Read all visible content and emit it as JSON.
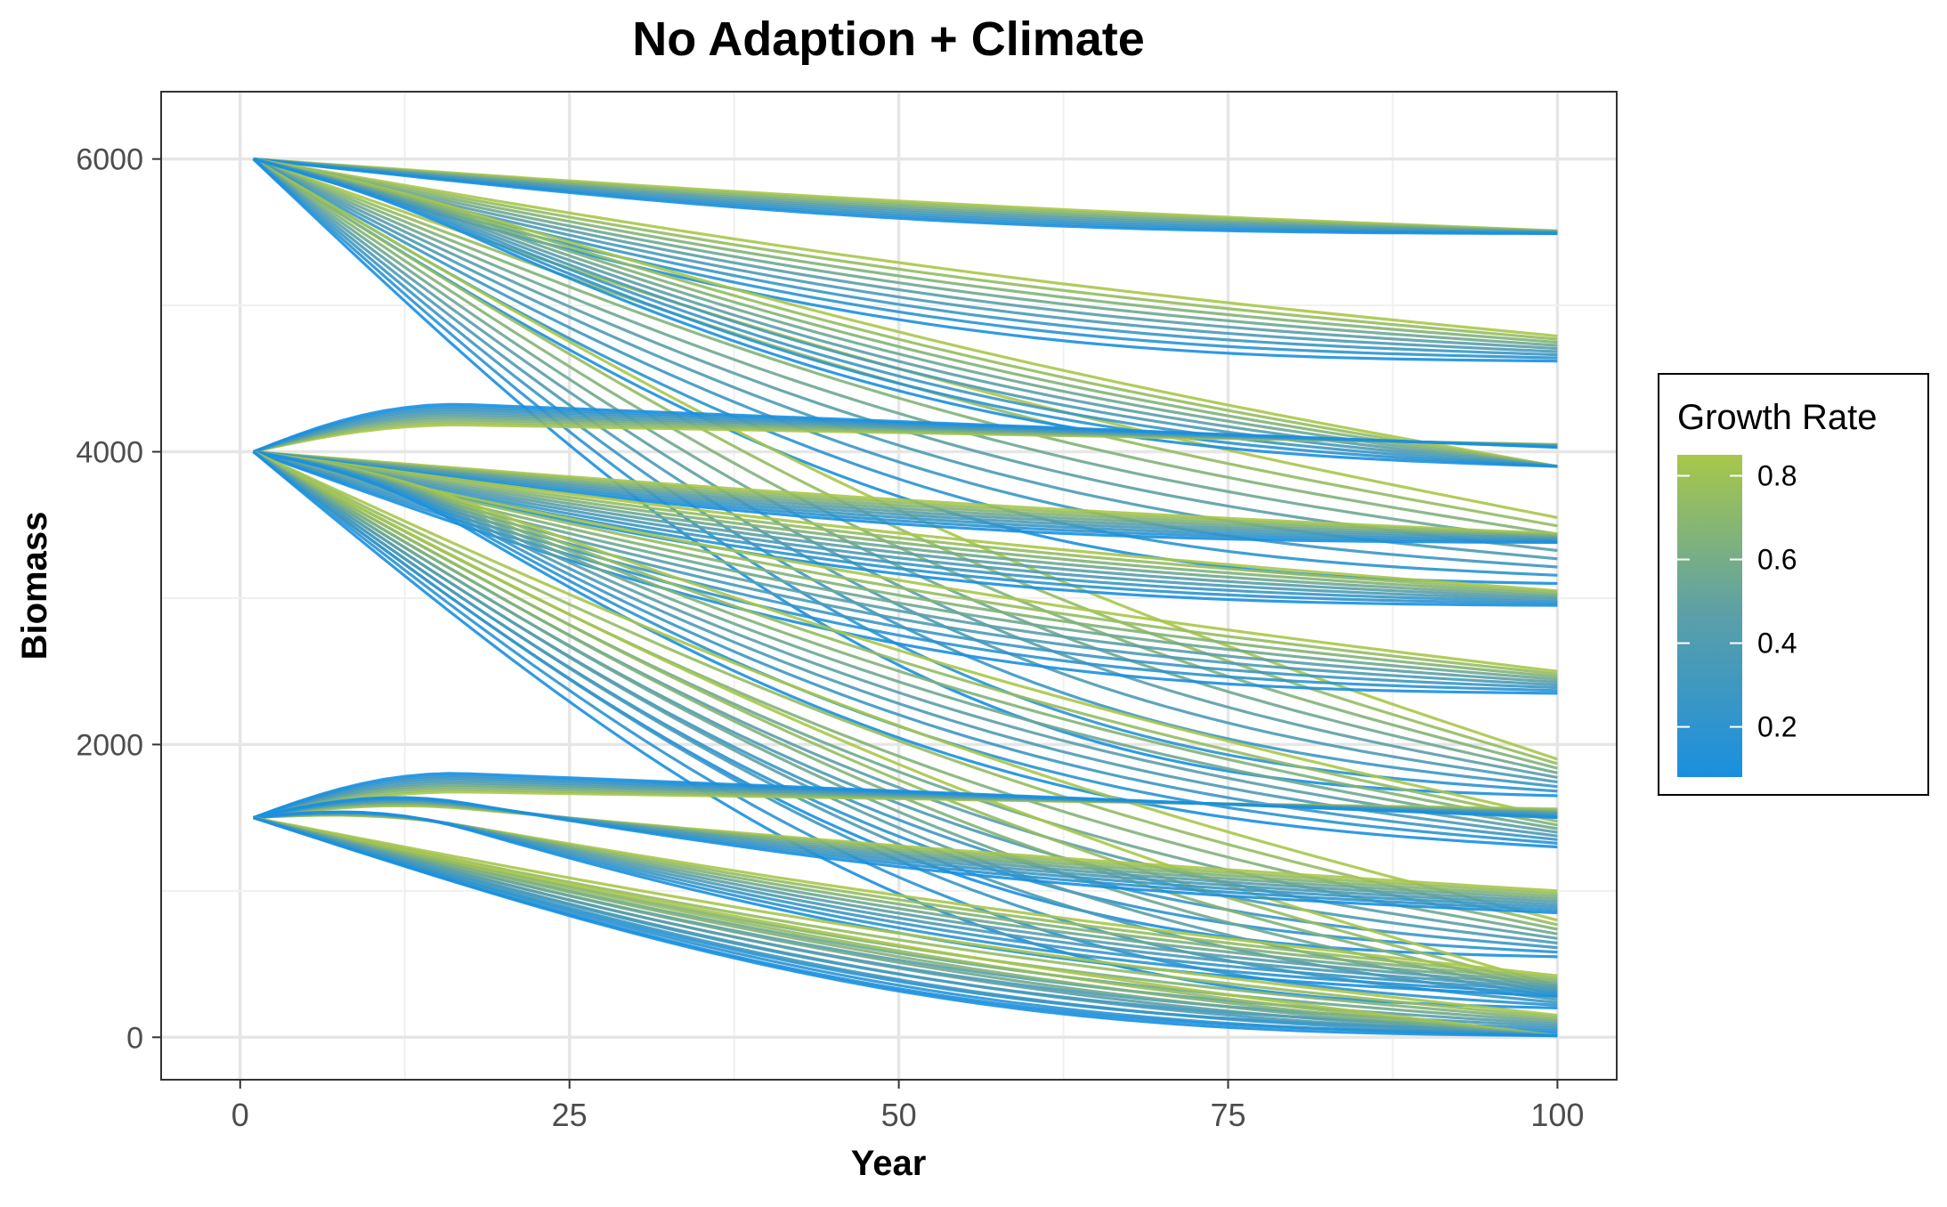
{
  "chart_data": {
    "type": "line",
    "title": "No Adaption + Climate",
    "xlabel": "Year",
    "ylabel": "Biomass",
    "xlim": [
      -6,
      104.5
    ],
    "ylim": [
      -290,
      6460
    ],
    "xticks": [
      0,
      25,
      50,
      75,
      100
    ],
    "yticks": [
      0,
      2000,
      4000,
      6000
    ],
    "x_tick_labels": [
      "0",
      "25",
      "50",
      "75",
      "100"
    ],
    "y_tick_labels": [
      "0",
      "2000",
      "4000",
      "6000"
    ],
    "grid": true,
    "legend": {
      "title": "Growth Rate",
      "position": "right",
      "type": "colorbar",
      "range": [
        0.08,
        0.85
      ],
      "ticks": [
        0.2,
        0.4,
        0.6,
        0.8
      ],
      "tick_labels": [
        "0.2",
        "0.4",
        "0.6",
        "0.8"
      ],
      "color_low": "#1a8fe0",
      "color_high": "#a8c74a"
    },
    "series_description_note": "",
    "x_start": 1,
    "x_end": 100,
    "groups": [
      {
        "start": 6000,
        "ends": [
          5510,
          5490
        ],
        "peak": 6000
      },
      {
        "start": 6000,
        "ends": [
          4790,
          4620
        ],
        "peak": 6000
      },
      {
        "start": 6000,
        "ends": [
          3550,
          3350,
          3100
        ],
        "peak": 6000
      },
      {
        "start": 6000,
        "ends": [
          1900,
          1650
        ],
        "peak": 6000
      },
      {
        "start": 6000,
        "ends": [
          3900
        ],
        "peak": 6170
      },
      {
        "start": 4000,
        "ends": [
          4050,
          4030
        ],
        "peak": 4380
      },
      {
        "start": 4000,
        "ends": [
          3440,
          3380
        ],
        "peak": 4000
      },
      {
        "start": 4000,
        "ends": [
          3050,
          2950
        ],
        "peak": 4000
      },
      {
        "start": 4000,
        "ends": [
          2500,
          2350
        ],
        "peak": 4000
      },
      {
        "start": 4000,
        "ends": [
          1500,
          1300
        ],
        "peak": 4380
      },
      {
        "start": 4000,
        "ends": [
          800,
          550
        ],
        "peak": 4000
      },
      {
        "start": 4000,
        "ends": [
          350,
          200
        ],
        "peak": 4000
      },
      {
        "start": 1500,
        "ends": [
          1560,
          1500
        ],
        "peak": 1860
      },
      {
        "start": 1500,
        "ends": [
          1000,
          850
        ],
        "peak": 1860
      },
      {
        "start": 1500,
        "ends": [
          420,
          280
        ],
        "peak": 1860
      },
      {
        "start": 1500,
        "ends": [
          150,
          30
        ],
        "peak": 1500
      },
      {
        "start": 1500,
        "ends": [
          10
        ],
        "peak": 1500
      }
    ]
  }
}
